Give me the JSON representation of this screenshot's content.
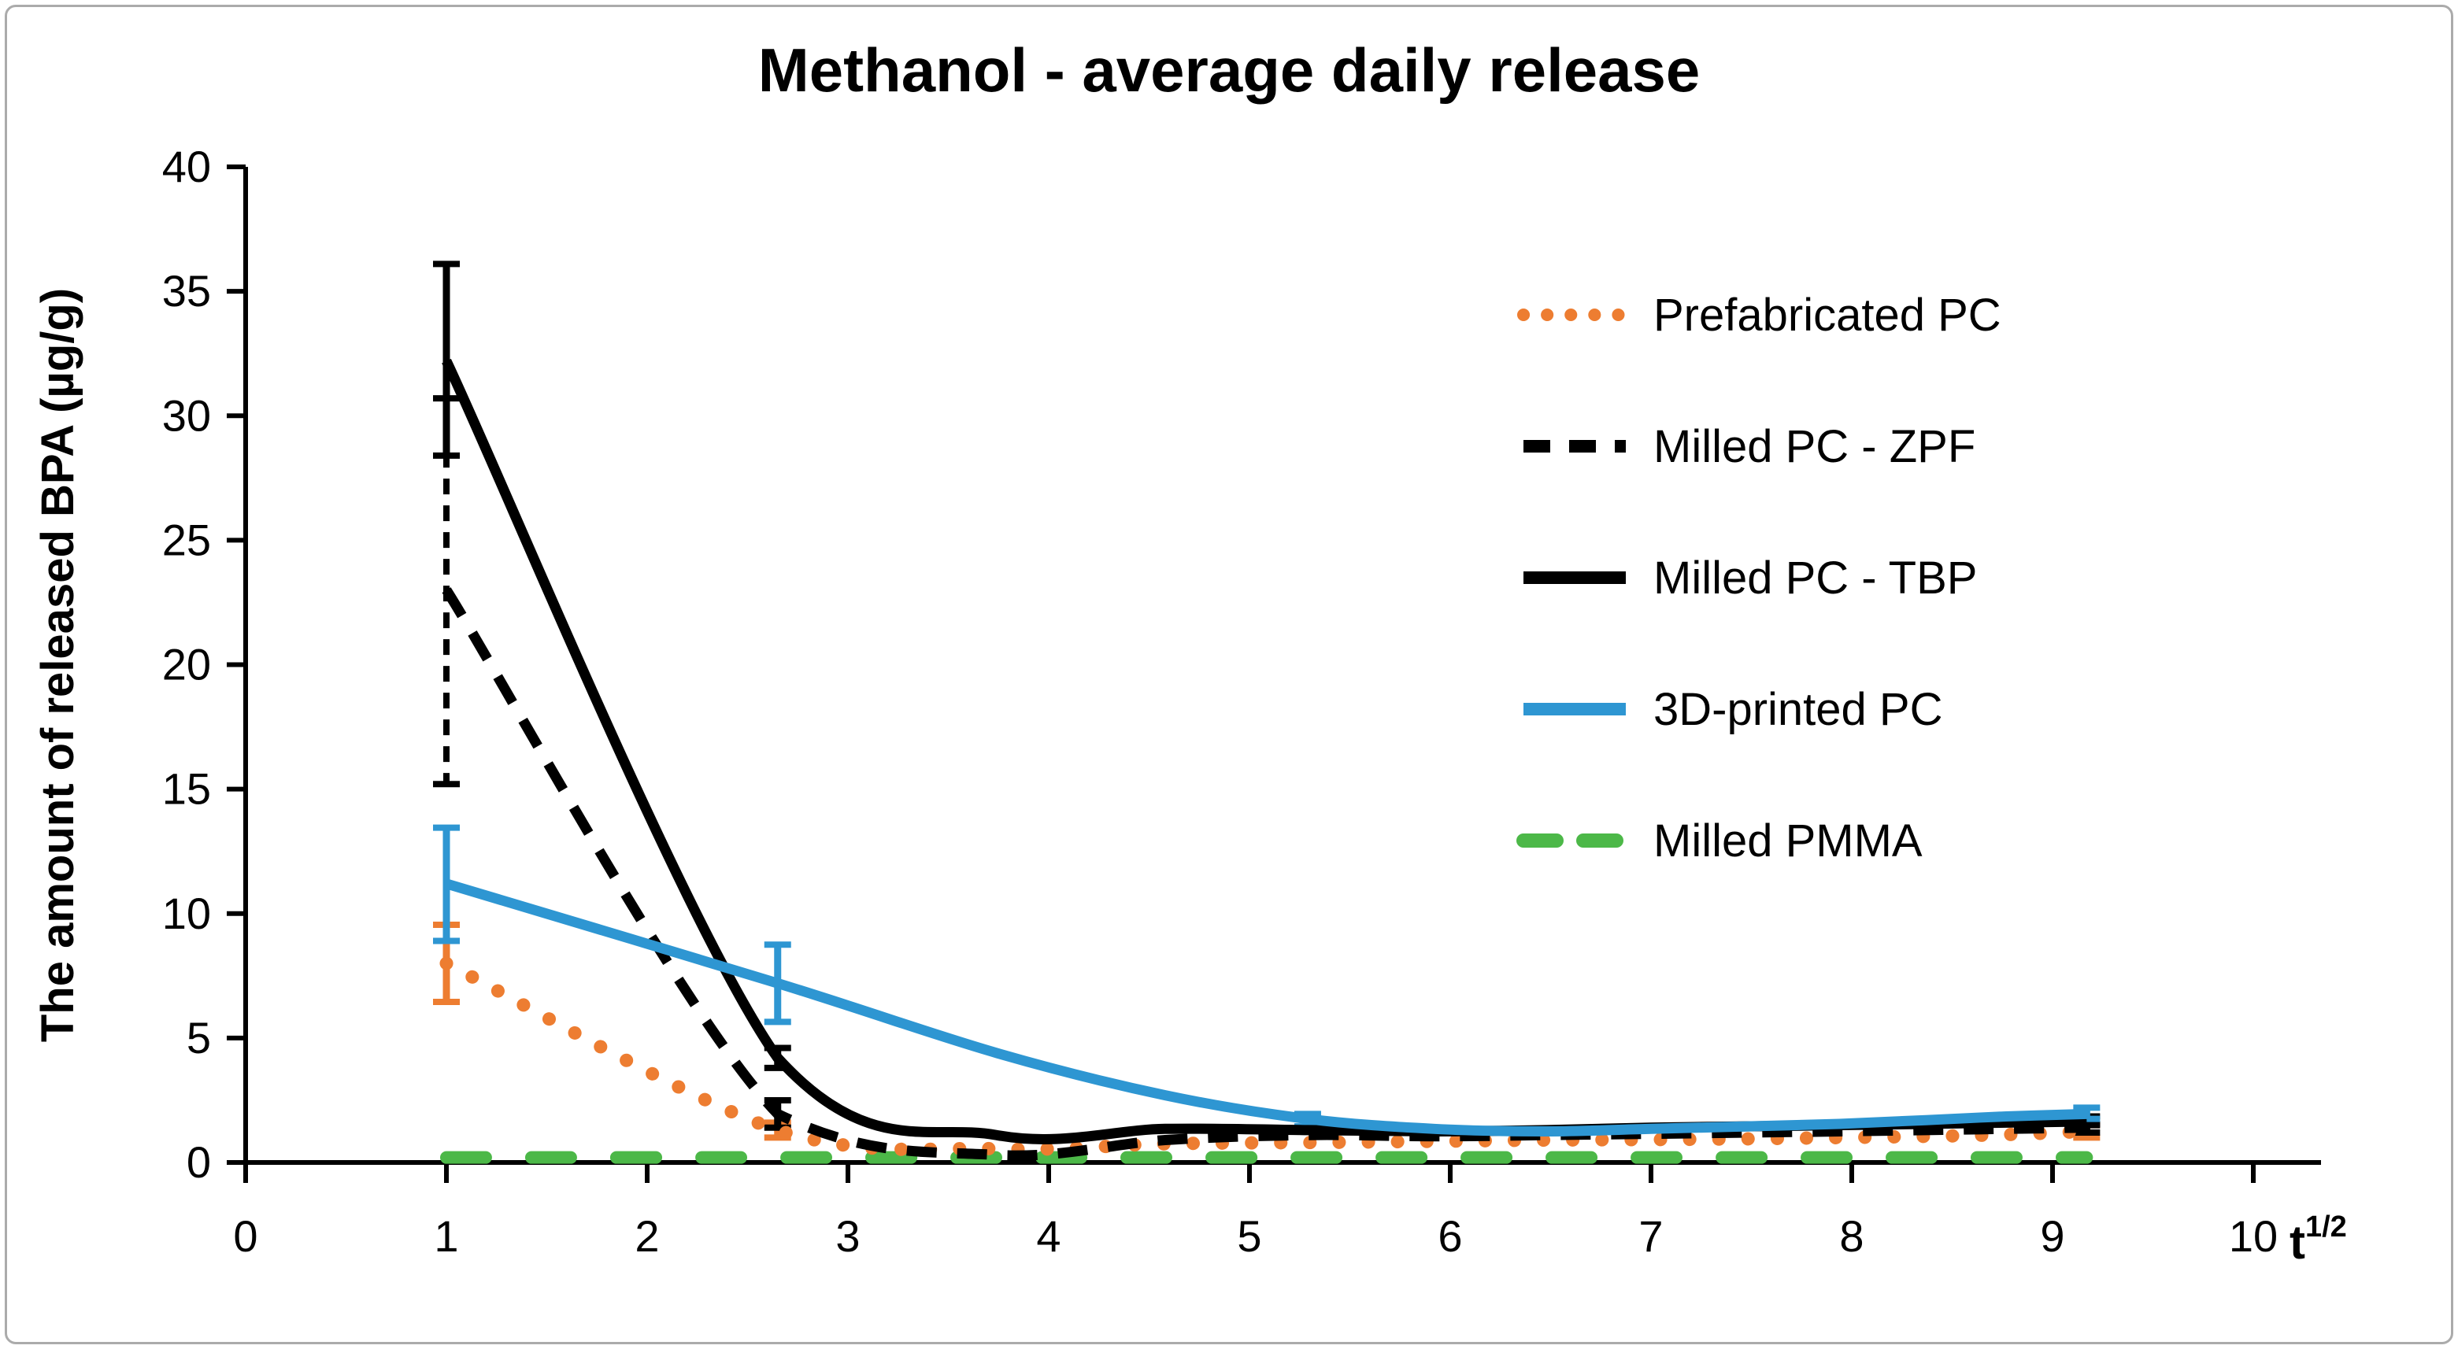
{
  "chart_data": {
    "type": "line",
    "title": "Methanol - average daily release",
    "xlabel": "t^(1/2)",
    "xlabel_symbol": "t",
    "xlabel_superscript": "1/2",
    "ylabel": "The amount of released BPA (µg/g)",
    "xlim": [
      0,
      10
    ],
    "ylim": [
      0,
      40
    ],
    "x_ticks": [
      0,
      1,
      2,
      3,
      4,
      5,
      6,
      7,
      8,
      9,
      10
    ],
    "y_ticks": [
      0,
      5,
      10,
      15,
      20,
      25,
      30,
      35,
      40
    ],
    "grid": false,
    "legend_position": "upper right",
    "x": [
      1,
      2.65,
      3.74,
      4.58,
      5.29,
      5.92,
      6.48,
      7.0,
      7.48,
      7.94,
      8.37,
      8.77,
      9.17
    ],
    "series": [
      {
        "name": "Prefabricated PC",
        "color": "#ED7D31",
        "style": "dotted",
        "values": [
          8.0,
          1.3,
          0.55,
          0.75,
          0.8,
          0.85,
          0.9,
          0.92,
          0.95,
          1.0,
          1.05,
          1.12,
          1.25
        ],
        "error_bars": [
          {
            "x": 1,
            "low": 6.45,
            "high": 9.55
          },
          {
            "x": 2.65,
            "low": 1.0,
            "high": 1.6
          },
          {
            "x": 9.17,
            "low": 1.0,
            "high": 1.5
          }
        ]
      },
      {
        "name": "Milled PC - ZPF",
        "color": "#000000",
        "style": "dashed",
        "values": [
          23.0,
          1.95,
          0.3,
          0.9,
          1.1,
          1.05,
          1.1,
          1.15,
          1.2,
          1.25,
          1.3,
          1.35,
          1.4
        ],
        "error_bars": [
          {
            "x": 1,
            "low": 15.2,
            "high": 30.7,
            "bar_style": "dashed"
          },
          {
            "x": 2.65,
            "low": 1.4,
            "high": 2.5
          },
          {
            "x": 9.17,
            "low": 1.2,
            "high": 1.55
          }
        ]
      },
      {
        "name": "Milled PC - TBP",
        "color": "#000000",
        "style": "solid",
        "values": [
          32.2,
          4.2,
          1.1,
          1.35,
          1.3,
          1.25,
          1.3,
          1.4,
          1.45,
          1.5,
          1.55,
          1.6,
          1.65
        ],
        "error_bars": [
          {
            "x": 1,
            "low": 28.4,
            "high": 36.1
          },
          {
            "x": 2.65,
            "low": 3.8,
            "high": 4.6
          },
          {
            "x": 9.17,
            "low": 1.5,
            "high": 1.85
          }
        ]
      },
      {
        "name": "3D-printed PC",
        "color": "#2E96D2",
        "style": "solid",
        "values": [
          11.2,
          7.2,
          4.4,
          2.7,
          1.75,
          1.35,
          1.25,
          1.35,
          1.45,
          1.55,
          1.7,
          1.85,
          1.95
        ],
        "error_bars": [
          {
            "x": 1,
            "low": 8.9,
            "high": 13.45
          },
          {
            "x": 2.65,
            "low": 5.65,
            "high": 8.75
          },
          {
            "x": 5.29,
            "low": 1.45,
            "high": 1.95
          },
          {
            "x": 9.17,
            "low": 1.75,
            "high": 2.2
          }
        ]
      },
      {
        "name": "Milled PMMA",
        "color": "#4CB848",
        "style": "long-dash",
        "values": [
          0.2,
          0.2,
          0.2,
          0.2,
          0.2,
          0.2,
          0.2,
          0.2,
          0.2,
          0.2,
          0.2,
          0.2,
          0.2
        ],
        "error_bars": []
      }
    ]
  }
}
